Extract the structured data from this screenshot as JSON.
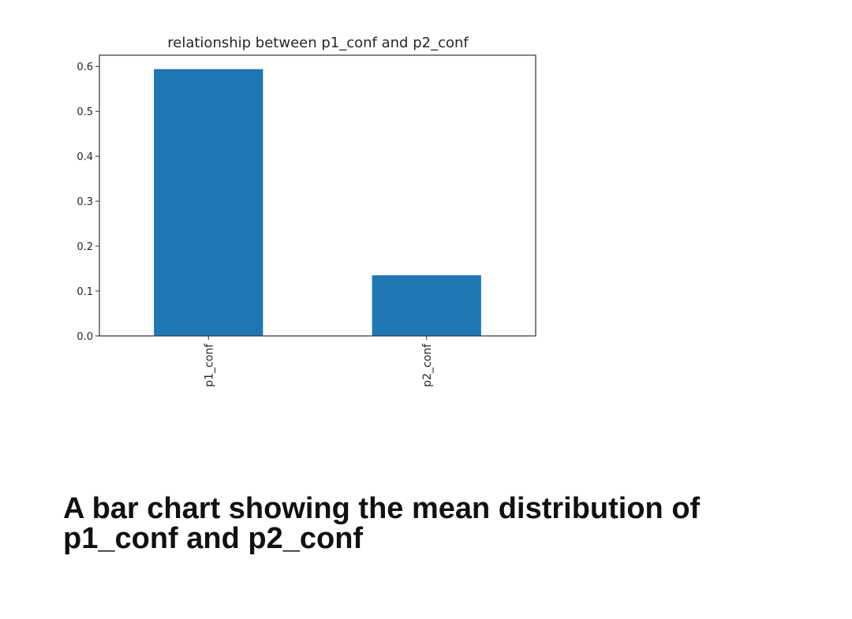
{
  "chart_data": {
    "type": "bar",
    "title": "relationship between p1_conf and p2_conf",
    "categories": [
      "p1_conf",
      "p2_conf"
    ],
    "values": [
      0.594,
      0.135
    ],
    "ylim": [
      0,
      0.625
    ],
    "yticks": [
      0.0,
      0.1,
      0.2,
      0.3,
      0.4,
      0.5,
      0.6
    ],
    "ytick_labels": [
      "0.0",
      "0.1",
      "0.2",
      "0.3",
      "0.4",
      "0.5",
      "0.6"
    ],
    "xlabel": "",
    "ylabel": "",
    "grid": false,
    "legend": false,
    "bar_color": "#1f77b4"
  },
  "caption": "A bar chart showing the mean distribution of p1_conf and p2_conf"
}
